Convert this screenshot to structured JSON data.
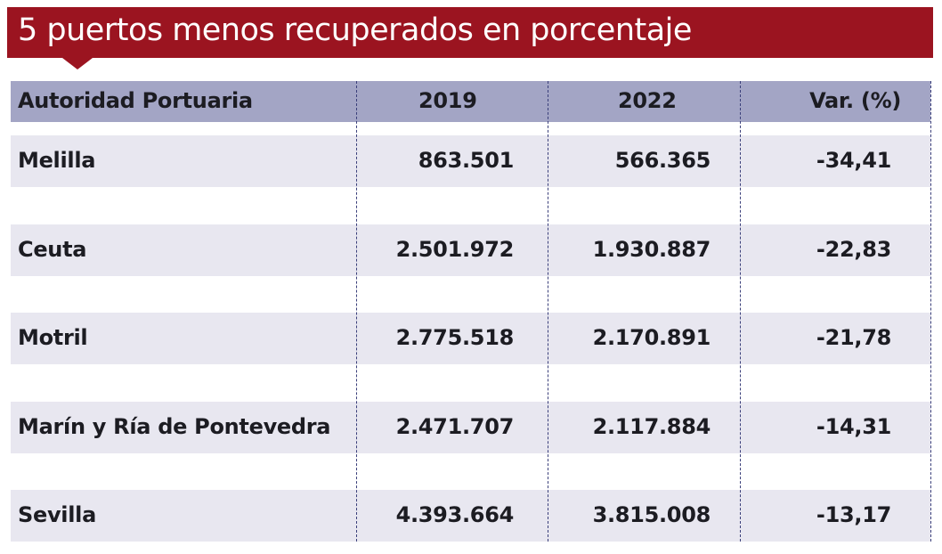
{
  "title": "5 puertos menos recuperados en porcentaje",
  "colors": {
    "title_bg": "#9b1420",
    "header_bg": "#a3a5c5",
    "row_bg": "#e8e7f0"
  },
  "chart_data": {
    "type": "table",
    "title": "5 puertos menos recuperados en porcentaje",
    "columns": [
      "Autoridad Portuaria",
      "2019",
      "2022",
      "Var. (%)"
    ],
    "rows": [
      [
        "Melilla",
        "863.501",
        "566.365",
        "-34,41"
      ],
      [
        "Ceuta",
        "2.501.972",
        "1.930.887",
        "-22,83"
      ],
      [
        "Motril",
        "2.775.518",
        "2.170.891",
        "-21,78"
      ],
      [
        "Marín y Ría de Pontevedra",
        "2.471.707",
        "2.117.884",
        "-14,31"
      ],
      [
        "Sevilla",
        "4.393.664",
        "3.815.008",
        "-13,17"
      ]
    ]
  }
}
